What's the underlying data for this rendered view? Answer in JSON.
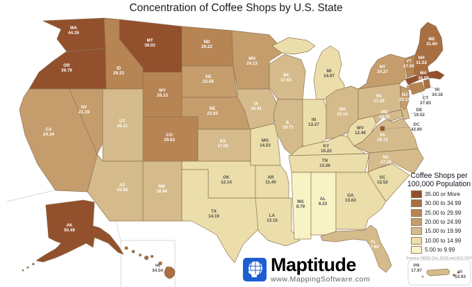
{
  "title": "Concentration of Coffee Shops by U.S. State",
  "legend": {
    "title_line1": "Coffee Shops per",
    "title_line2": "100,000 Population",
    "classes": [
      {
        "label": "35.00 or More",
        "color": "#93502C"
      },
      {
        "label": "30.00 to 34.99",
        "color": "#A96F42"
      },
      {
        "label": "25.00 to 29.99",
        "color": "#B78453"
      },
      {
        "label": "20.00 to 24.99",
        "color": "#C59D6C"
      },
      {
        "label": "15.00 to 19.99",
        "color": "#D5BB8C"
      },
      {
        "label": "10.00 to 14.99",
        "color": "#EBDEAA"
      },
      {
        "label": "5.00 to 9.99",
        "color": "#F8F3C5"
      }
    ],
    "source": "Sources: HERE (Oct. 2023) and ACS 2022"
  },
  "logo": {
    "name": "Maptitude",
    "url": "www.MappingSoftware.com"
  },
  "map": {
    "states": [
      {
        "abbr": "WA",
        "value": "44.35",
        "color": "#93502C",
        "label": "light"
      },
      {
        "abbr": "OR",
        "value": "39.79",
        "color": "#93502C",
        "label": "light"
      },
      {
        "abbr": "CA",
        "value": "24.34",
        "color": "#C59D6C",
        "label": "light"
      },
      {
        "abbr": "NV",
        "value": "21.19",
        "color": "#C59D6C",
        "label": "light"
      },
      {
        "abbr": "ID",
        "value": "29.23",
        "color": "#B78453",
        "label": "light"
      },
      {
        "abbr": "MT",
        "value": "39.02",
        "color": "#93502C",
        "label": "light"
      },
      {
        "abbr": "WY",
        "value": "26.13",
        "color": "#B78453",
        "label": "light"
      },
      {
        "abbr": "UT",
        "value": "16.11",
        "color": "#D5BB8C",
        "label": "light"
      },
      {
        "abbr": "CO",
        "value": "29.63",
        "color": "#B78453",
        "label": "light"
      },
      {
        "abbr": "AZ",
        "value": "19.98",
        "color": "#D5BB8C",
        "label": "light"
      },
      {
        "abbr": "NM",
        "value": "18.94",
        "color": "#D5BB8C",
        "label": "light"
      },
      {
        "abbr": "ND",
        "value": "29.22",
        "color": "#B78453",
        "label": "light"
      },
      {
        "abbr": "SD",
        "value": "22.58",
        "color": "#C59D6C",
        "label": "light"
      },
      {
        "abbr": "NE",
        "value": "23.02",
        "color": "#C59D6C",
        "label": "light"
      },
      {
        "abbr": "KS",
        "value": "17.03",
        "color": "#D5BB8C",
        "label": "light"
      },
      {
        "abbr": "OK",
        "value": "12.14",
        "color": "#EBDEAA",
        "label": "dark"
      },
      {
        "abbr": "TX",
        "value": "14.19",
        "color": "#EBDEAA",
        "label": "dark"
      },
      {
        "abbr": "MN",
        "value": "24.13",
        "color": "#C59D6C",
        "label": "light"
      },
      {
        "abbr": "IA",
        "value": "19.41",
        "color": "#D5BB8C",
        "label": "light"
      },
      {
        "abbr": "MO",
        "value": "14.53",
        "color": "#EBDEAA",
        "label": "dark"
      },
      {
        "abbr": "AR",
        "value": "11.40",
        "color": "#EBDEAA",
        "label": "dark"
      },
      {
        "abbr": "LA",
        "value": "13.15",
        "color": "#EBDEAA",
        "label": "dark"
      },
      {
        "abbr": "WI",
        "value": "17.63",
        "color": "#D5BB8C",
        "label": "light"
      },
      {
        "abbr": "IL",
        "value": "19.71",
        "color": "#D5BB8C",
        "label": "light"
      },
      {
        "abbr": "MI",
        "value": "14.97",
        "color": "#EBDEAA",
        "label": "dark"
      },
      {
        "abbr": "IN",
        "value": "13.27",
        "color": "#EBDEAA",
        "label": "dark"
      },
      {
        "abbr": "OH",
        "value": "15.14",
        "color": "#D5BB8C",
        "label": "light"
      },
      {
        "abbr": "KY",
        "value": "10.22",
        "color": "#EBDEAA",
        "label": "dark"
      },
      {
        "abbr": "TN",
        "value": "13.26",
        "color": "#EBDEAA",
        "label": "dark"
      },
      {
        "abbr": "MS",
        "value": "8.79",
        "color": "#F8F3C5",
        "label": "dark"
      },
      {
        "abbr": "AL",
        "value": "9.23",
        "color": "#F8F3C5",
        "label": "dark"
      },
      {
        "abbr": "GA",
        "value": "13.63",
        "color": "#EBDEAA",
        "label": "dark"
      },
      {
        "abbr": "FL",
        "value": "17.60",
        "color": "#D5BB8C",
        "label": "light"
      },
      {
        "abbr": "SC",
        "value": "12.52",
        "color": "#EBDEAA",
        "label": "dark"
      },
      {
        "abbr": "NC",
        "value": "17.28",
        "color": "#D5BB8C",
        "label": "light"
      },
      {
        "abbr": "VA",
        "value": "16.72",
        "color": "#D5BB8C",
        "label": "light"
      },
      {
        "abbr": "WV",
        "value": "12.49",
        "color": "#EBDEAA",
        "label": "dark"
      },
      {
        "abbr": "PA",
        "value": "17.25",
        "color": "#D5BB8C",
        "label": "light"
      },
      {
        "abbr": "NY",
        "value": "24.27",
        "color": "#C59D6C",
        "label": "light"
      },
      {
        "abbr": "ME",
        "value": "31.60",
        "color": "#A96F42",
        "label": "light"
      },
      {
        "abbr": "VT",
        "value": "27.65",
        "color": "#B78453",
        "label": "light"
      },
      {
        "abbr": "NH",
        "value": "31.53",
        "color": "#A96F42",
        "label": "light"
      },
      {
        "abbr": "MA",
        "value": "35.09",
        "color": "#93502C",
        "label": "light"
      },
      {
        "abbr": "RI",
        "value": "34.18",
        "color": "#A96F42",
        "label": "dark"
      },
      {
        "abbr": "CT",
        "value": "27.83",
        "color": "#B78453",
        "label": "dark"
      },
      {
        "abbr": "NJ",
        "value": "23.14",
        "color": "#C59D6C",
        "label": "light"
      },
      {
        "abbr": "DE",
        "value": "19.52",
        "color": "#D5BB8C",
        "label": "dark"
      },
      {
        "abbr": "MD",
        "value": "16.41",
        "color": "#D5BB8C",
        "label": "light"
      },
      {
        "abbr": "DC",
        "value": "42.80",
        "color": "#93502C",
        "label": "dark"
      },
      {
        "abbr": "AK",
        "value": "50.49",
        "color": "#93502C",
        "label": "light"
      },
      {
        "abbr": "HI",
        "value": "34.54",
        "color": "#A96F42",
        "label": "dark"
      },
      {
        "abbr": "PR",
        "value": "17.97",
        "color": "#D5BB8C",
        "label": "dark"
      },
      {
        "abbr": "VI",
        "value": "53.93",
        "color": "#93502C",
        "label": "dark"
      }
    ]
  }
}
